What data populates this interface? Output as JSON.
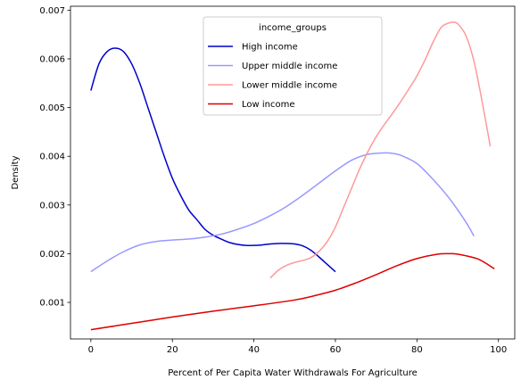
{
  "chart_data": {
    "type": "line",
    "xlabel": "Percent of Per Capita Water Withdrawals For Agriculture",
    "ylabel": "Density",
    "xlim": [
      -5,
      104
    ],
    "ylim": [
      0.00025,
      0.00708
    ],
    "xticks": [
      0,
      20,
      40,
      60,
      80,
      100
    ],
    "yticks": [
      0.001,
      0.002,
      0.003,
      0.004,
      0.005,
      0.006,
      0.007
    ],
    "ytick_labels": [
      "0.001",
      "0.002",
      "0.003",
      "0.004",
      "0.005",
      "0.006",
      "0.007"
    ],
    "grid": false,
    "legend": {
      "title": "income_groups",
      "placement": "top-center"
    },
    "series": [
      {
        "name": "High income",
        "color": "#0000cc",
        "x": [
          0,
          2,
          4,
          6,
          8,
          10,
          12,
          14,
          16,
          18,
          20,
          22,
          24,
          26,
          28,
          30,
          32,
          34,
          36,
          38,
          40,
          42,
          44,
          46,
          48,
          50,
          52,
          54,
          56,
          58,
          60
        ],
        "y": [
          0.00535,
          0.0059,
          0.00615,
          0.00622,
          0.00615,
          0.0059,
          0.0055,
          0.005,
          0.0045,
          0.004,
          0.00355,
          0.0032,
          0.0029,
          0.0027,
          0.0025,
          0.00238,
          0.0023,
          0.00223,
          0.00219,
          0.00217,
          0.00217,
          0.00218,
          0.0022,
          0.00221,
          0.00221,
          0.0022,
          0.00216,
          0.00207,
          0.00193,
          0.00178,
          0.00163
        ]
      },
      {
        "name": "Upper middle income",
        "color": "#9999ff",
        "x": [
          0,
          4,
          8,
          12,
          16,
          20,
          24,
          28,
          32,
          36,
          40,
          44,
          48,
          52,
          56,
          60,
          64,
          68,
          72,
          74,
          76,
          80,
          84,
          88,
          92,
          94
        ],
        "y": [
          0.00163,
          0.00185,
          0.00204,
          0.00218,
          0.00225,
          0.00228,
          0.0023,
          0.00234,
          0.0024,
          0.0025,
          0.00262,
          0.00278,
          0.00297,
          0.0032,
          0.00345,
          0.0037,
          0.00392,
          0.00404,
          0.00407,
          0.00406,
          0.00402,
          0.00385,
          0.00352,
          0.00313,
          0.00265,
          0.00236
        ]
      },
      {
        "name": "Lower middle income",
        "color": "#ff9999",
        "x": [
          44,
          46,
          48,
          50,
          52,
          54,
          56,
          58,
          60,
          62,
          64,
          66,
          68,
          70,
          72,
          74,
          76,
          78,
          80,
          82,
          84,
          86,
          88,
          89,
          90,
          92,
          94,
          96,
          98
        ],
        "y": [
          0.0015,
          0.00166,
          0.00176,
          0.00182,
          0.00186,
          0.00192,
          0.00205,
          0.00225,
          0.00255,
          0.00295,
          0.00335,
          0.00375,
          0.0041,
          0.0044,
          0.00465,
          0.00488,
          0.00512,
          0.00538,
          0.00565,
          0.00598,
          0.00635,
          0.00665,
          0.00674,
          0.00675,
          0.00672,
          0.00648,
          0.00595,
          0.00512,
          0.0042
        ]
      },
      {
        "name": "Low income",
        "color": "#dd0000",
        "x": [
          0,
          10,
          20,
          30,
          40,
          50,
          55,
          60,
          65,
          70,
          75,
          80,
          85,
          88,
          90,
          95,
          99
        ],
        "y": [
          0.00044,
          0.00057,
          0.0007,
          0.00082,
          0.00093,
          0.00105,
          0.00114,
          0.00125,
          0.0014,
          0.00157,
          0.00175,
          0.0019,
          0.00199,
          0.002,
          0.00199,
          0.00189,
          0.00169
        ]
      }
    ]
  }
}
